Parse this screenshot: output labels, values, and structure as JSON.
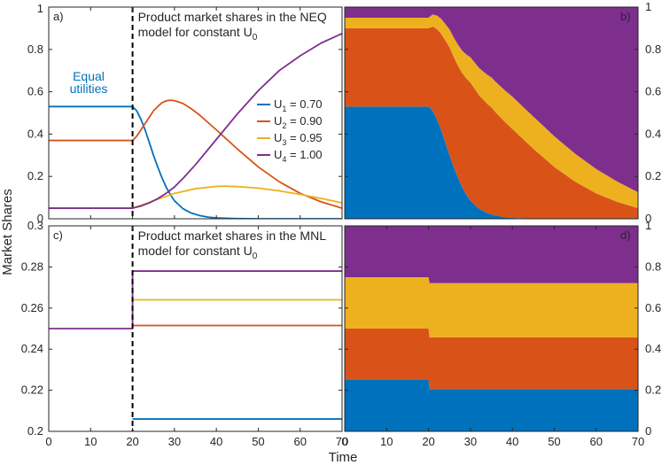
{
  "figure": {
    "ylabel": "Market Shares",
    "xlabel": "Time",
    "colors": {
      "u1": "#0072BD",
      "u2": "#D95319",
      "u3": "#EDB120",
      "u4": "#7E2F8E",
      "switch_line": "#000000"
    }
  },
  "chart_data": [
    {
      "id": "a",
      "type": "line",
      "panel_label": "a)",
      "title_lines": [
        "Product market shares in the NEQ",
        "model for constant U"
      ],
      "title_subscript": "0",
      "equal_utilities_label": [
        "Equal",
        "utilities"
      ],
      "xlim": [
        0,
        70
      ],
      "ylim": [
        0,
        1
      ],
      "xticks": [
        0,
        10,
        20,
        30,
        40,
        50,
        60,
        70
      ],
      "xtick_labels": [
        "",
        "",
        "",
        "",
        "",
        "",
        "",
        ""
      ],
      "yticks": [
        0,
        0.2,
        0.4,
        0.6,
        0.8,
        1
      ],
      "ytick_labels": [
        "0",
        "0.2",
        "0.4",
        "0.6",
        "0.8",
        "1"
      ],
      "switch_time": 20,
      "legend": [
        {
          "name": "U",
          "sub": "1",
          "value": " = 0.70"
        },
        {
          "name": "U",
          "sub": "2",
          "value": " = 0.90"
        },
        {
          "name": "U",
          "sub": "3",
          "value": " = 0.95"
        },
        {
          "name": "U",
          "sub": "4",
          "value": " = 1.00"
        }
      ],
      "series": [
        {
          "name": "U1 = 0.70",
          "color_key": "u1",
          "x": [
            0,
            20,
            21,
            22,
            23,
            24,
            25,
            26,
            27,
            28,
            29,
            30,
            32,
            34,
            36,
            38,
            40,
            45,
            50,
            60,
            70
          ],
          "y": [
            0.53,
            0.53,
            0.51,
            0.47,
            0.42,
            0.36,
            0.3,
            0.245,
            0.195,
            0.15,
            0.115,
            0.085,
            0.048,
            0.027,
            0.015,
            0.008,
            0.004,
            0.001,
            0.0,
            0.0,
            0.0
          ]
        },
        {
          "name": "U2 = 0.90",
          "color_key": "u2",
          "x": [
            0,
            20,
            21,
            22,
            23,
            24,
            25,
            26,
            27,
            28,
            29,
            30,
            32,
            34,
            36,
            38,
            40,
            45,
            50,
            55,
            60,
            65,
            70
          ],
          "y": [
            0.37,
            0.37,
            0.39,
            0.42,
            0.45,
            0.48,
            0.51,
            0.53,
            0.548,
            0.557,
            0.56,
            0.558,
            0.545,
            0.52,
            0.49,
            0.455,
            0.42,
            0.33,
            0.245,
            0.175,
            0.12,
            0.08,
            0.05
          ]
        },
        {
          "name": "U3 = 0.95",
          "color_key": "u3",
          "x": [
            0,
            20,
            25,
            30,
            35,
            40,
            42,
            45,
            50,
            55,
            60,
            65,
            70
          ],
          "y": [
            0.05,
            0.05,
            0.085,
            0.12,
            0.142,
            0.153,
            0.154,
            0.152,
            0.145,
            0.132,
            0.115,
            0.096,
            0.075
          ]
        },
        {
          "name": "U4 = 1.00",
          "color_key": "u4",
          "x": [
            0,
            20,
            22,
            24,
            26,
            28,
            30,
            32,
            35,
            40,
            45,
            50,
            55,
            60,
            65,
            70
          ],
          "y": [
            0.05,
            0.05,
            0.06,
            0.075,
            0.095,
            0.12,
            0.15,
            0.19,
            0.255,
            0.375,
            0.495,
            0.605,
            0.7,
            0.77,
            0.83,
            0.875
          ]
        }
      ]
    },
    {
      "id": "b",
      "type": "area",
      "stacked": true,
      "panel_label": "b)",
      "xlim": [
        0,
        70
      ],
      "ylim": [
        0,
        1
      ],
      "yaxis_side": "right",
      "yticks": [
        0,
        0.2,
        0.4,
        0.6,
        0.8,
        1
      ],
      "ytick_labels": [
        "0",
        "0.2",
        "0.4",
        "0.6",
        "0.8",
        "1"
      ],
      "series": [
        {
          "name": "U1",
          "color_key": "u1",
          "x": [
            0,
            20,
            21,
            22,
            23,
            24,
            25,
            26,
            27,
            28,
            29,
            30,
            32,
            34,
            36,
            38,
            40,
            45,
            50,
            60,
            70
          ],
          "y": [
            0.53,
            0.53,
            0.51,
            0.47,
            0.42,
            0.36,
            0.3,
            0.245,
            0.195,
            0.15,
            0.115,
            0.085,
            0.048,
            0.027,
            0.015,
            0.008,
            0.004,
            0.001,
            0.0,
            0.0,
            0.0
          ]
        },
        {
          "name": "U2",
          "color_key": "u2",
          "x": [
            0,
            20,
            25,
            30,
            35,
            40,
            45,
            50,
            55,
            60,
            65,
            70
          ],
          "y": [
            0.37,
            0.37,
            0.51,
            0.558,
            0.505,
            0.42,
            0.33,
            0.245,
            0.175,
            0.12,
            0.08,
            0.05
          ]
        },
        {
          "name": "U3",
          "color_key": "u3",
          "x": [
            0,
            20,
            25,
            30,
            35,
            40,
            45,
            50,
            55,
            60,
            65,
            70
          ],
          "y": [
            0.05,
            0.05,
            0.085,
            0.12,
            0.142,
            0.153,
            0.152,
            0.145,
            0.132,
            0.115,
            0.096,
            0.075
          ]
        },
        {
          "name": "U4",
          "color_key": "u4",
          "fill_to_top": true
        }
      ]
    },
    {
      "id": "c",
      "type": "line",
      "panel_label": "c)",
      "title_lines": [
        "Product market shares in the MNL",
        "model for constant U"
      ],
      "title_subscript": "0",
      "xlim": [
        0,
        70
      ],
      "ylim": [
        0.2,
        0.3
      ],
      "xticks": [
        0,
        10,
        20,
        30,
        40,
        50,
        60,
        70
      ],
      "xtick_labels": [
        "0",
        "10",
        "20",
        "30",
        "40",
        "50",
        "60",
        "70"
      ],
      "yticks": [
        0.2,
        0.22,
        0.24,
        0.26,
        0.28,
        0.3
      ],
      "ytick_labels": [
        "0.2",
        "0.22",
        "0.24",
        "0.26",
        "0.28",
        "0.3"
      ],
      "switch_time": 20,
      "series": [
        {
          "name": "U4 = 1.00",
          "color_key": "u4",
          "x": [
            0,
            20,
            20,
            70
          ],
          "y": [
            0.25,
            0.25,
            0.278,
            0.278
          ]
        },
        {
          "name": "U3 = 0.95",
          "color_key": "u3",
          "x": [
            20,
            70
          ],
          "y": [
            0.264,
            0.264
          ]
        },
        {
          "name": "U2 = 0.90",
          "color_key": "u2",
          "x": [
            20,
            70
          ],
          "y": [
            0.2515,
            0.2515
          ]
        },
        {
          "name": "U1 = 0.70",
          "color_key": "u1",
          "x": [
            20,
            70
          ],
          "y": [
            0.206,
            0.206
          ]
        }
      ]
    },
    {
      "id": "d",
      "type": "area",
      "stacked": true,
      "panel_label": "d)",
      "xlim": [
        0,
        70
      ],
      "ylim": [
        0,
        1
      ],
      "yaxis_side": "right",
      "xticks": [
        0,
        10,
        20,
        30,
        40,
        50,
        60,
        70
      ],
      "xtick_labels": [
        "0",
        "10",
        "20",
        "30",
        "40",
        "50",
        "60",
        "70"
      ],
      "yticks": [
        0,
        0.2,
        0.4,
        0.6,
        0.8,
        1
      ],
      "ytick_labels": [
        "0",
        "0.2",
        "0.4",
        "0.6",
        "0.8",
        "1"
      ],
      "series": [
        {
          "name": "U1",
          "color_key": "u1",
          "x": [
            0,
            20,
            20.2,
            70
          ],
          "y": [
            0.25,
            0.25,
            0.206,
            0.206
          ]
        },
        {
          "name": "U2",
          "color_key": "u2",
          "x": [
            0,
            20,
            20.2,
            70
          ],
          "y": [
            0.25,
            0.25,
            0.2515,
            0.2515
          ]
        },
        {
          "name": "U3",
          "color_key": "u3",
          "x": [
            0,
            20,
            20.2,
            70
          ],
          "y": [
            0.25,
            0.25,
            0.264,
            0.264
          ]
        },
        {
          "name": "U4",
          "color_key": "u4",
          "fill_to_top": true
        }
      ]
    }
  ]
}
